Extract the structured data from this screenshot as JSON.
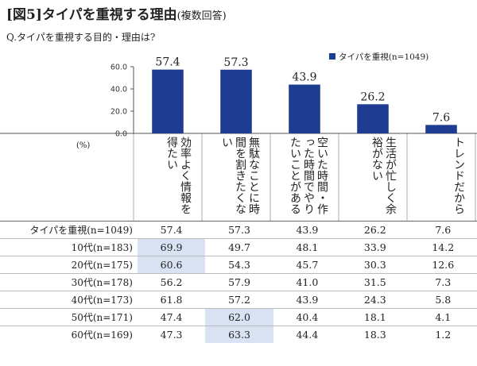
{
  "header": {
    "title_main": "[図5]タイパを重視する理由",
    "title_sub": "(複数回答)",
    "question": "Q.タイパを重視する目的・理由は?",
    "unit": "(%)"
  },
  "chart_data": {
    "type": "bar",
    "categories": [
      "効率よく情報を得たい",
      "無駄なことに時間を割きたくない",
      "空いた時間・作った時間でやりたいことがある",
      "生活が忙しく余裕がない",
      "トレンドだから"
    ],
    "series": [
      {
        "name": "タイパを重視(n=1049)",
        "values": [
          57.4,
          57.3,
          43.9,
          26.2,
          7.6
        ]
      }
    ],
    "value_labels": [
      "57.4",
      "57.3",
      "43.9",
      "26.2",
      "7.6"
    ],
    "ylim": [
      0,
      60
    ],
    "yticks": [
      0,
      20,
      40,
      60
    ],
    "ytick_labels": [
      "0.0",
      "20.0",
      "40.0",
      "60.0"
    ],
    "bar_color": "#1f3c93",
    "legend_position": "top-right"
  },
  "table": {
    "rows": [
      {
        "label": "タイパを重視(n=1049)",
        "values": [
          "57.4",
          "57.3",
          "43.9",
          "26.2",
          "7.6"
        ],
        "highlight": []
      },
      {
        "label": "10代(n=183)",
        "values": [
          "69.9",
          "49.7",
          "48.1",
          "33.9",
          "14.2"
        ],
        "highlight": [
          0
        ]
      },
      {
        "label": "20代(n=175)",
        "values": [
          "60.6",
          "54.3",
          "45.7",
          "30.3",
          "12.6"
        ],
        "highlight": [
          0
        ]
      },
      {
        "label": "30代(n=178)",
        "values": [
          "56.2",
          "57.9",
          "41.0",
          "31.5",
          "7.3"
        ],
        "highlight": []
      },
      {
        "label": "40代(n=173)",
        "values": [
          "61.8",
          "57.2",
          "43.9",
          "24.3",
          "5.8"
        ],
        "highlight": []
      },
      {
        "label": "50代(n=171)",
        "values": [
          "47.4",
          "62.0",
          "40.4",
          "18.1",
          "4.1"
        ],
        "highlight": [
          1
        ]
      },
      {
        "label": "60代(n=169)",
        "values": [
          "47.3",
          "63.3",
          "44.4",
          "18.3",
          "1.2"
        ],
        "highlight": [
          1
        ]
      }
    ],
    "highlight_color": "#d9e2f3"
  }
}
